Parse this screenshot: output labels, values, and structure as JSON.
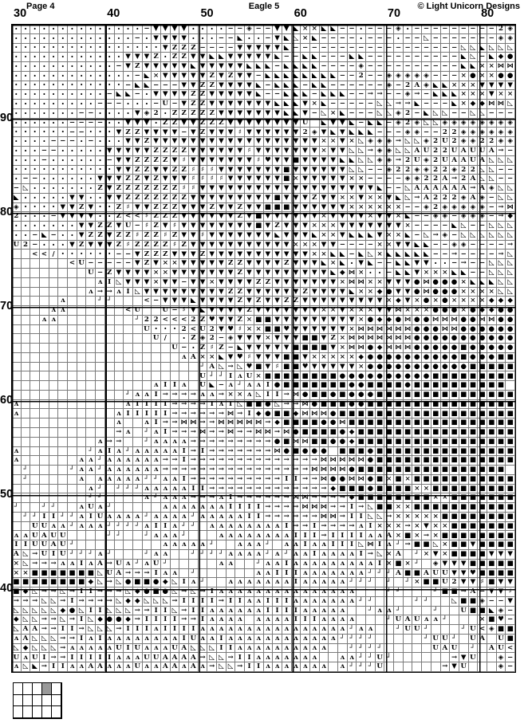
{
  "header": {
    "page_label": "Page 4",
    "title": "Eagle 5",
    "copyright": "© Light Unicorn Designs"
  },
  "axis": {
    "column_labels": [
      "30",
      "40",
      "50",
      "60",
      "70",
      "80"
    ],
    "row_labels": [
      "90",
      "80",
      "70",
      "60",
      "50",
      "40"
    ]
  },
  "colors": {
    "background": "#ffffff",
    "grid_line": "#7a7a7a",
    "major_line": "#000000",
    "symbol": "#000000",
    "minimap_highlight": "#999999"
  },
  "minimap": {
    "cols": 5,
    "rows": 3,
    "highlighted_cell": {
      "row": 0,
      "col": 3
    }
  },
  "grid": {
    "cols": 54,
    "rows_count": 69,
    "symbol_map": {
      ".": "·",
      "-": "−",
      "v": "▼",
      "z": "Z",
      "x": "×",
      "u": "U",
      "A": "A",
      "2": "2",
      "<": "<",
      "/": "/",
      "h": "⋈",
      "d": "◆",
      "o": "●",
      "s": "■",
      "t": "◣",
      "l": "◺",
      "q": "◈",
      "#": "♯",
      "w": "♥",
      "I": "I",
      "^": "ʌ",
      "j": "┘",
      "r": "→",
      " ": ""
    },
    "rows": [
      "..............-vvvv....--q--vvtxxtt--.---q.---------2q",
      ".............-.vvvv...--t..-vtlxt----.---.--l-------qq",
      "................vzzz----vvvvvt------------------lltlll",
      "............vvvz.zzvvttvvvvvt--tt---tt----------tl-tdo",
      "...........-vzvvvvvtvvvvvttt-tttt----q----------ttxxhh",
      ".............-txvvvvvzvzvv-tttttttt--2--qqqqq---xoxxoo",
      "............-tt---vvzzvvvvt-ttt-tt------q-2Aqttxxxvvvv",
      "..........-tt-.vvvvzzvvvvvt--ttt-ttt--rr--qr-tttxxxvxx",
      ".........---...-u-vzzvvvvvvvtttvxt-----llrrt---txddhhl",
      ".......--....vq2.zzzzzvvvvvvvttv-lxt---llq2-tll--ll---",
      "......----..vvv.zzvvzzzvvvvvvvvu tvvt-tt-q2qllqqqqqqqq",
      "......--...vzzvvvv-vzvvv#vvvvvv2qvtvttt---qq--22qqqqqq",
      "....---.-...vvzvvvvvvvvvvvvvvvvvvxxvxlqqqrllq2u2qq22qq",
      "...--.....vvvvvzzzzvvvvvv#vvvvvvvxvvllrqqllAu22uAuuAr-",
      "...-......-vvzzzzv#vvvvvvv#wvvsvvvvttllqqr2uq2uAAuAlll",
      "...........vvzzvvzz###vvvvvvvsvvvvvvll--q22qq22q22ll--",
      ".--......vvvzzvzvvv####vvvvvvsxvvvvvxx----qq22Ar2All--",
      "-l.......zvzzzzzzz##vvvvvvvvvvvvvvvvvvvt--lAAAAAArAqll",
      "t.....vv..vvzzzzzzzvvvvvvvvvsvvvzvvxxvxxvtlrA222qAq-ll",
      "q....vvzv..z#vvzzzvvvzvvzvvsssvvvvvvxxxxxx--q2qqqqq-rh",
      "2...-vvvv..z<<#zzzvvvvvvzvsvvvvvvxvvvvxvvxt--qq-qqq-rd",
      ".......vvzzvu-#zv#vvvvvvvvsvzvvvxxxvvvvvvvx----tl--lll",
      "..-t-..vzzvzz#zz#zvv#vvvvvvvtvvvtxxvtttvxxt-lrq-llllll",
      "u2-...vzvvvz#zzzz#zvvvvvvvvvvvxxxvv----xxvvtt--qq----r-",
      "  <</......--vzzzvvvzvvvvvvvvvvvxxtt-tlxttttt--r----rl",
      "      <u-----vzvxxvvvvvzzvvvvzvvvtxt.vt--ttvv..-r--lll",
      "        u-zvvvvxxvvvvvvvzvvvvvvvvvtdhx..-ttvxxxtt--lll",
      "         ^Ilvvvxvv-vvxvvvvzzvvvvvvvxhhxxvvvohoooxtttll",
      "        ^rr^Ilvvvvvvvvvzzvvvvvvzvvvvtxxdovvohoooxxxxll",
      "     ^   jj   <-vvvtvvvvzvzvvzzvvvvvvvvvxdvxoxoxxxxddd",
      "    ^^      <u  u-#vtvvvvzvvvvvvvxxvxxxvvhxxxoooxoddoo",
      "   ^^        j22<<<2zwvvzxssvvvvvvvvvxoddohoohhhoohhoo",
      "              u...2<u2vw#xxsswvvvvvvxhhhhhhooohhoooooo",
      "               u/ .zq2-qvvvxvvvssvzxhhhhhhhooooooooooo",
      "                 u-.z#z-tvvvvvssssvxhhodhhhooooosooooo",
      "                  ^Axxtvw#vvvssvxxxxxdoooooooooosoooss",
      "                    jAlrlwsv#sswvvvvvxooooooooooosssss",
      "                    ujjI^uxssssssssoooooooooosssssssss",
      "               ^II^ ut-^j^^Iosssssssoossssossssssssss",
      "            j^^Irrrr^^rxx^lIIrhossosooosssssssssssssss",
      "^           ^IIIIrrrrI^Ilssolrrhosssoossssssssssssssss",
      "^          ^IIIIIrrrrrrhrIdossdhhhosssssssssssssssssss",
      "           ^  ^Irrhhrrhhhhhrdssssoohssssssssssssssssss",
      "           r^ j^Irrrhrrhrrhhrhossssodsssssssssssssssss",
      "         ^rr  j^^^^rrrrrrrrroshhssoodsssssssssssssssss",
      "^       j^I^j^^^^^IrIrrrrrrrhosoooesssossssssssssssssss",
      "^      ^^j^^^^^^rrIrrrrrrrrrrrrrrhhhhhosssssssssssssss",
      " j    j^^j^^^^^^rrrrrrrrrrrrrrrrhhhhossssssssssssssss",
      " j     ^ ^^^^^jj^^IrrrrrrrrrrIIrrhoohhosxsxsssssssssss",
      "        ^j jjj^^^^^IIrrrrrrrrrrrrrdsssossssxxsssssssss",
      "        jj    ^j^^^rrr^Irrrrrrhhrrrrdssssssssxxsssssss",
      "j  jj  ^u^j     ^^^^^^^IIIIrrrrhhhrrIrlssxxsssssssssss",
      " jjIIjj^Iu^^^^j^^^^j^^^^^IIrrrrrrhhrIIllrxxxxxssssssss",
      "  uu^^j^^^jjjj^II^jj ^^^^^^^^IrrIrrrr^Ixxxrxvxxsssssss",
      "^^uAuu    jj  j^^^j   ^^^^^^^^IIIrIIII^^Axsxrxssssssss",
      "IIuuAuj         ^^^^^j  ^^^j ^^I^^IIIlhI^jrsslxssvssss",
      "AlruIujjj^j   j^^  jjjj^^^^j^j^^I^^^^IrlxA jxvxssssvvv",
      "xlrrr^^I^Aru^j^uj     ^^  j^^I^^^^^^^^^Ixsxj qvvvsssss",
      "xxsssssssluArrrI^^ j      ^^III^^^^^^^jjjAssAuuvvwssss",
      "ssssssssdlrlossodlI^j  ^^^^^^^I^^^^^jjj j jxssu2vv#svv",
      "sdlrrlrIIrrrldosolrlrI^^^^^^^^^^^^^^^   jj   jssrA-vv#",
      "rrrllrIrrrrlddlllrIIIIrII^^III^^^^^^^jj    jj  lssq--v",
      "llllldolIIlllrrIIlrII^^^^^^IIII^^^^^  j^^j   j  usstq-",
      "dllrrlrIldoodrIIIIrrI^^^^ ^^^^III^^^^   juAu^^j   xsw-",
      "lAArrIIrlllrIII^IIII^^^^^^^^^^^^^^^^j^^  juuj   ju<qss",
      "^AlllrrI^I^^^^^^^^Iu^^I^^^^^^^^^^^^jjjj     juuj uA us",
      "ldlllr^^^^^uIu^^^uAlllII^^^^^^^^^^  jjjj     uAu j Au<",
      "u^uIrrIIIII^^^uuAAAArllrII^^^^^^^  ^^jjuj      rvu  q-",
      "^ltrII^^AA^^^u^^AA^A^rllrII^^^^^^^ ^jjju      rvu   q-"
    ]
  }
}
